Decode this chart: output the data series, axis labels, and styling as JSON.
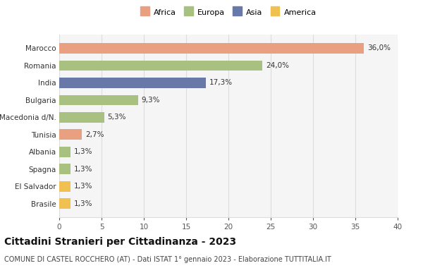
{
  "categories": [
    "Brasile",
    "El Salvador",
    "Spagna",
    "Albania",
    "Tunisia",
    "Macedonia d/N.",
    "Bulgaria",
    "India",
    "Romania",
    "Marocco"
  ],
  "values": [
    1.3,
    1.3,
    1.3,
    1.3,
    2.7,
    5.3,
    9.3,
    17.3,
    24.0,
    36.0
  ],
  "labels": [
    "1,3%",
    "1,3%",
    "1,3%",
    "1,3%",
    "2,7%",
    "5,3%",
    "9,3%",
    "17,3%",
    "24,0%",
    "36,0%"
  ],
  "colors": [
    "#f0c050",
    "#f0c050",
    "#a8c080",
    "#a8c080",
    "#e8a080",
    "#a8c080",
    "#a8c080",
    "#6878a8",
    "#a8c080",
    "#e8a080"
  ],
  "legend": [
    {
      "label": "Africa",
      "color": "#e8a080"
    },
    {
      "label": "Europa",
      "color": "#a8c080"
    },
    {
      "label": "Asia",
      "color": "#6878a8"
    },
    {
      "label": "America",
      "color": "#f0c050"
    }
  ],
  "xlim": [
    0,
    40
  ],
  "xticks": [
    0,
    5,
    10,
    15,
    20,
    25,
    30,
    35,
    40
  ],
  "title": "Cittadini Stranieri per Cittadinanza - 2023",
  "subtitle": "COMUNE DI CASTEL ROCCHERO (AT) - Dati ISTAT 1° gennaio 2023 - Elaborazione TUTTITALIA.IT",
  "bg_color": "#ffffff",
  "plot_bg_color": "#f5f5f5",
  "grid_color": "#dddddd",
  "label_fontsize": 7.5,
  "tick_fontsize": 7.5,
  "title_fontsize": 10,
  "subtitle_fontsize": 7
}
